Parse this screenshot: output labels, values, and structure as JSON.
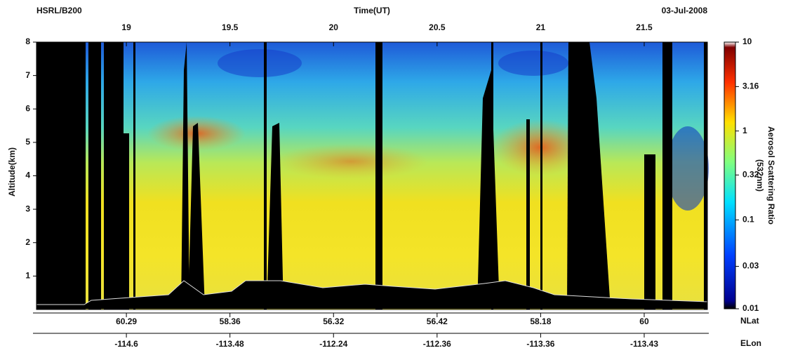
{
  "chart_data": {
    "type": "curtain",
    "title": "Time(UT)",
    "left_label": "HSRL/B200",
    "date": "03-Jul-2008",
    "y_label": "Altitude(km)",
    "xlim": [
      18.566,
      21.805
    ],
    "xticks": [
      19,
      19.5,
      20,
      20.5,
      21,
      21.5
    ],
    "ylim": [
      0,
      8
    ],
    "yticks": [
      1,
      2,
      3,
      4,
      5,
      6,
      7,
      8
    ],
    "lat_label": "NLat",
    "lat_values": [
      60.29,
      58.36,
      56.32,
      56.42,
      58.18,
      60
    ],
    "lon_label": "ELon",
    "lon_values": [
      -114.6,
      -113.48,
      -112.24,
      -112.36,
      -113.36,
      -113.43
    ],
    "colorbar": {
      "title": "Aerosol Scattering Ratio",
      "subtitle": "(532nm)",
      "scale": "log",
      "clim": [
        0.01,
        10
      ],
      "ticks": [
        10,
        3.16,
        1,
        0.32,
        0.1,
        0.03,
        0.01
      ]
    }
  }
}
